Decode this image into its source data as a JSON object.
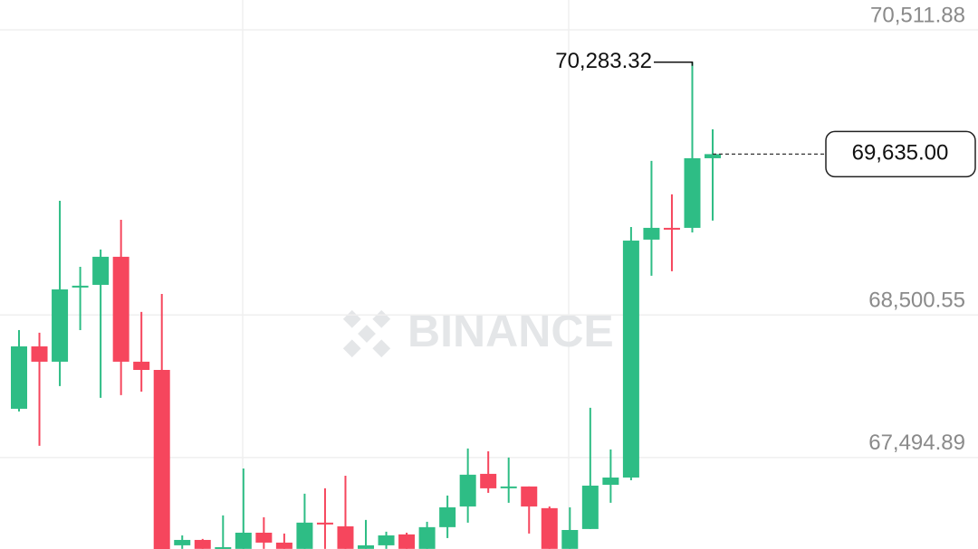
{
  "chart_data": {
    "type": "candlestick",
    "watermark": "BINANCE",
    "ylim": [
      66850,
      70722
    ],
    "yticks": [
      {
        "value": 70511.88,
        "label": "70,511.88"
      },
      {
        "value": 68500.55,
        "label": "68,500.55"
      },
      {
        "value": 67494.89,
        "label": "67,494.89"
      }
    ],
    "grid": true,
    "up_color": "#2ebd85",
    "down_color": "#f6465d",
    "open": [
      67839,
      68279,
      68171,
      68694,
      68713,
      68911,
      68171,
      68113,
      66876,
      66914,
      66851,
      66851,
      66965,
      66895,
      66851,
      67036,
      67010,
      66851,
      66876,
      66953,
      66851,
      67004,
      67150,
      67380,
      67284,
      67291,
      67138,
      66851,
      66991,
      67303,
      67354,
      69032,
      69115,
      69115,
      69606
    ],
    "high": [
      68394,
      68375,
      69306,
      68840,
      68962,
      69172,
      68522,
      68649,
      66946,
      66921,
      67087,
      67418,
      67074,
      66959,
      67240,
      67278,
      67367,
      67055,
      66972,
      66965,
      67042,
      67227,
      67559,
      67539,
      67495,
      67291,
      67150,
      67144,
      67846,
      67552,
      69121,
      69587,
      69351,
      70283.32,
      69810
    ],
    "low": [
      67820,
      67578,
      67999,
      68394,
      67916,
      67935,
      67960,
      66704,
      66851,
      66851,
      66851,
      66851,
      66851,
      66851,
      66851,
      66851,
      66851,
      66851,
      66851,
      66851,
      66851,
      66927,
      67036,
      67246,
      67176,
      66959,
      66851,
      66851,
      66991,
      67176,
      67335,
      68777,
      68809,
      69083,
      69166
    ],
    "close": [
      68279,
      68171,
      68681,
      68707,
      68911,
      68171,
      68113,
      66800,
      66914,
      66851,
      66863,
      66965,
      66895,
      66851,
      67036,
      67023,
      66851,
      66876,
      66946,
      66851,
      67004,
      67144,
      67374,
      67278,
      67291,
      67150,
      66851,
      66984,
      67297,
      67354,
      69025,
      69115,
      69108,
      69606,
      69635
    ],
    "max_annotation": {
      "value": 70283.32,
      "label": "70,283.32"
    },
    "last_price": {
      "value": 69635,
      "label": "69,635.00"
    }
  }
}
